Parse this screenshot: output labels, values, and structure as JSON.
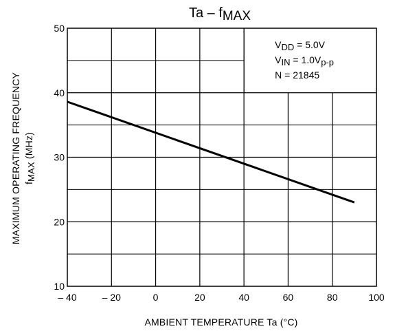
{
  "chart_data": {
    "type": "line",
    "title": {
      "main": "Ta",
      "separator": "–",
      "y_symbol": "f",
      "y_symbol_sub": "MAX"
    },
    "xlabel": "AMBIENT  TEMPERATURE    Ta     (°C)",
    "ylabel": {
      "line1": "MAXIMUM  OPERATING  FREQUENCY",
      "line2_symbol": "f",
      "line2_sub": "MAX",
      "line2_unit": "(MHz)"
    },
    "xlim": [
      -40,
      100
    ],
    "ylim": [
      10,
      50
    ],
    "x_ticks": [
      -40,
      -20,
      0,
      20,
      40,
      60,
      80,
      100
    ],
    "x_tick_labels": [
      "– 40",
      "– 20",
      "0",
      "20",
      "40",
      "60",
      "80",
      "100"
    ],
    "y_ticks": [
      10,
      20,
      30,
      40,
      50
    ],
    "y_tick_labels": [
      "10",
      "20",
      "30",
      "40",
      "50"
    ],
    "grid": true,
    "minor_y_grid": [
      15,
      25,
      35,
      45
    ],
    "series": [
      {
        "x": [
          -40,
          90
        ],
        "y": [
          38.6,
          23.0
        ],
        "color": "#000000"
      }
    ],
    "annotations": [
      {
        "symbol": "V",
        "sub": "DD",
        "rest": " = 5.0V"
      },
      {
        "symbol": "V",
        "sub": "IN",
        "rest": " = 1.0V",
        "rest_sub": "p-p"
      },
      {
        "text": "N = 21845"
      }
    ],
    "annotation_placement": "top-right"
  }
}
